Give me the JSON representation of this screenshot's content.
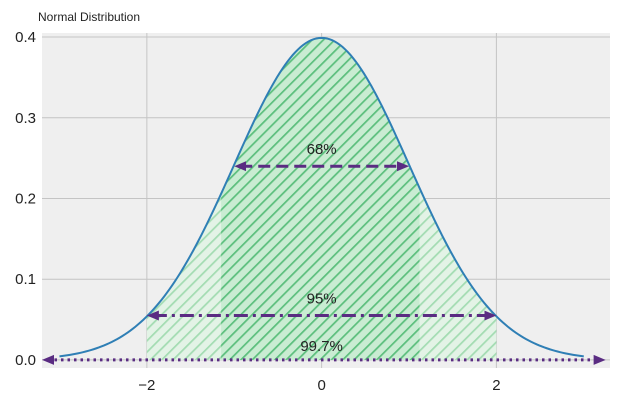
{
  "chart_data": {
    "type": "area",
    "title": "Normal Distribution",
    "xlabel": "",
    "ylabel": "",
    "xlim": [
      -3.2,
      3.3
    ],
    "ylim": [
      -0.01,
      0.405
    ],
    "x_ticks": [
      "−2",
      "0",
      "2"
    ],
    "y_ticks": [
      "0.0",
      "0.1",
      "0.2",
      "0.3",
      "0.4"
    ],
    "x_tick_values": [
      -2,
      0,
      2
    ],
    "y_tick_values": [
      0.0,
      0.1,
      0.2,
      0.3,
      0.4
    ],
    "grid": true,
    "curve": {
      "name": "pdf",
      "mean": 0,
      "std": 1,
      "x_range": [
        -3,
        3
      ],
      "color": "#2f7fb5"
    },
    "regions": [
      {
        "label": "68%",
        "x_range": [
          -1.15,
          1.12
        ],
        "arrow_y": 0.24,
        "arrow_x_range": [
          -1,
          1
        ],
        "line_style": "dashed",
        "fill": "#c9ecd2",
        "hatch_color": "#5cbf7d"
      },
      {
        "label": "95%",
        "x_range": [
          -2,
          2
        ],
        "arrow_y": 0.055,
        "arrow_x_range": [
          -2,
          2
        ],
        "line_style": "dashdot",
        "fill": "#e3f3e6",
        "hatch_color": "#a3dcb2"
      },
      {
        "label": "99.7%",
        "x_range": [
          -3,
          3
        ],
        "arrow_y": 0.0,
        "arrow_x_range": [
          -3.2,
          3.25
        ],
        "line_style": "dotted",
        "fill": "none",
        "hatch_color": "none"
      }
    ],
    "colors": {
      "plot_background": "#efefef",
      "grid": "#c4c4c4",
      "arrow": "#5a2c82"
    }
  }
}
